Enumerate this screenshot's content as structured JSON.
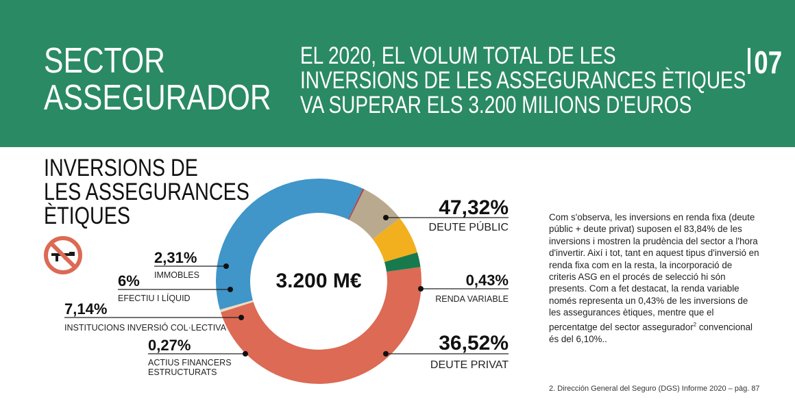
{
  "header": {
    "section_title_line1": "SECTOR",
    "section_title_line2": "ASSEGURADOR",
    "headline_line1": "EL 2020, EL VOLUM TOTAL DE LES",
    "headline_line2": "INVERSIONS DE LES ASSEGURANCES ÈTIQUES",
    "headline_line3": "VA SUPERAR ELS 3.200 MILIONS D'EUROS",
    "page_number": "07",
    "background_color": "#2a8a64"
  },
  "subtitle": {
    "line1": "INVERSIONS DE",
    "line2": "LES ASSEGURANCES",
    "line3": "ÈTIQUES",
    "icon": "no-weapons-icon"
  },
  "chart_data": {
    "type": "pie",
    "donut": true,
    "center_label": "3.200 M€",
    "slices": [
      {
        "label": "DEUTE PÚBLIC",
        "value": 47.32,
        "value_label": "47,32%",
        "color": "#dc6a54"
      },
      {
        "label": "RENDA VARIABLE",
        "value": 0.43,
        "value_label": "0,43%",
        "color": "#e8dcc0"
      },
      {
        "label": "DEUTE PRIVAT",
        "value": 36.52,
        "value_label": "36,52%",
        "color": "#4095c9"
      },
      {
        "label": "ACTIUS FINANCERS ESTRUCTURATS",
        "value": 0.27,
        "value_label": "0,27%",
        "color": "#a8474e"
      },
      {
        "label": "INSTITUCIONS INVERSIÓ COL·LECTIVA",
        "value": 7.14,
        "value_label": "7,14%",
        "color": "#b9a98f"
      },
      {
        "label": "EFECTIU I LÍQUID",
        "value": 6,
        "value_label": "6%",
        "color": "#f2b01e"
      },
      {
        "label": "IMMOBLES",
        "value": 2.31,
        "value_label": "2,31%",
        "color": "#177a4c"
      }
    ]
  },
  "body_text": {
    "paragraph_a": "Com s'observa, les inversions en renda fixa (deute públic + deute privat) suposen el 83,84% de les inversions i mostren la prudència del sector a l'hora d'invertir. Així i tot, tant en aquest tipus d'inversió en renda fixa com en la resta, la incorporació de criteris ASG en el procés de selecció hi són presents. Com a fet destacat, la renda variable només representa un 0,43% de les inversions de les assegurances ètiques, mentre que el percentatge del sector assegurador",
    "footnote_ref": "2",
    "paragraph_b": " convencional és del 6,10%.."
  },
  "footnote": "2. Dirección General del Seguro (DGS) Informe 2020 – pàg. 87"
}
